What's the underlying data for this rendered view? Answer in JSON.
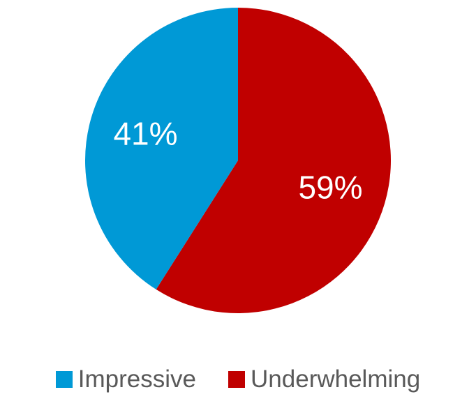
{
  "chart_data": {
    "type": "pie",
    "categories": [
      "Impressive",
      "Underwhelming"
    ],
    "values": [
      41,
      59
    ],
    "data_labels": [
      "41%",
      "59%"
    ],
    "colors": [
      "#0099D6",
      "#C00000"
    ],
    "legend_position": "bottom",
    "start_angle": "12 o'clock",
    "direction": "counterclockwise"
  }
}
